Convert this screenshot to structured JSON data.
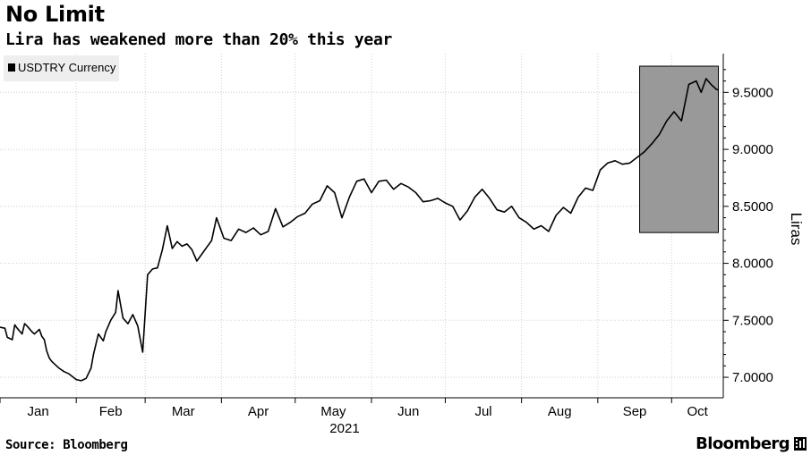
{
  "header": {
    "title": "No Limit",
    "subtitle": "Lira has weakened more than 20% this year"
  },
  "footer": {
    "source": "Source: Bloomberg",
    "brand": "Bloomberg"
  },
  "chart_data": {
    "type": "line",
    "legend": {
      "label": "USDTRY Currency",
      "placement": "top-left"
    },
    "ylabel": "Liras",
    "ylim": [
      6.82,
      9.84
    ],
    "yticks": [
      7.0,
      7.5,
      8.0,
      8.5,
      9.0,
      9.5
    ],
    "ytick_labels": [
      "7.0000",
      "7.5000",
      "8.0000",
      "8.5000",
      "9.0000",
      "9.5000"
    ],
    "y_axis_side": "right",
    "grid": true,
    "x_year_label": "2021",
    "x_months": [
      "Jan",
      "Feb",
      "Mar",
      "Apr",
      "May",
      "Jun",
      "Jul",
      "Aug",
      "Sep",
      "Oct"
    ],
    "xlim": [
      "2021-01-01",
      "2021-10-22"
    ],
    "highlight_range": {
      "x_start": "2021-09-18",
      "x_end": "2021-10-20",
      "y_low": 8.27,
      "y_high": 9.73
    },
    "colors": {
      "line": "#000000",
      "highlight": "#999999",
      "legend_bg": "#eeeeee"
    },
    "series": [
      {
        "name": "USDTRY Currency",
        "x": [
          "2021-01-01",
          "2021-01-03",
          "2021-01-04",
          "2021-01-06",
          "2021-01-07",
          "2021-01-08",
          "2021-01-10",
          "2021-01-11",
          "2021-01-12",
          "2021-01-14",
          "2021-01-15",
          "2021-01-17",
          "2021-01-18",
          "2021-01-19",
          "2021-01-20",
          "2021-01-21",
          "2021-01-22",
          "2021-01-25",
          "2021-01-27",
          "2021-01-29",
          "2021-02-01",
          "2021-02-03",
          "2021-02-05",
          "2021-02-07",
          "2021-02-08",
          "2021-02-10",
          "2021-02-12",
          "2021-02-13",
          "2021-02-15",
          "2021-02-17",
          "2021-02-18",
          "2021-02-20",
          "2021-02-22",
          "2021-02-24",
          "2021-02-26",
          "2021-02-28",
          "2021-03-02",
          "2021-03-04",
          "2021-03-06",
          "2021-03-08",
          "2021-03-10",
          "2021-03-12",
          "2021-03-14",
          "2021-03-16",
          "2021-03-18",
          "2021-03-20",
          "2021-03-22",
          "2021-03-24",
          "2021-03-26",
          "2021-03-28",
          "2021-03-30",
          "2021-04-02",
          "2021-04-05",
          "2021-04-08",
          "2021-04-11",
          "2021-04-14",
          "2021-04-17",
          "2021-04-20",
          "2021-04-23",
          "2021-04-26",
          "2021-04-29",
          "2021-05-02",
          "2021-05-05",
          "2021-05-08",
          "2021-05-11",
          "2021-05-14",
          "2021-05-17",
          "2021-05-20",
          "2021-05-23",
          "2021-05-26",
          "2021-05-29",
          "2021-06-01",
          "2021-06-04",
          "2021-06-07",
          "2021-06-10",
          "2021-06-13",
          "2021-06-16",
          "2021-06-19",
          "2021-06-22",
          "2021-06-25",
          "2021-06-28",
          "2021-07-01",
          "2021-07-04",
          "2021-07-07",
          "2021-07-10",
          "2021-07-13",
          "2021-07-16",
          "2021-07-19",
          "2021-07-22",
          "2021-07-25",
          "2021-07-28",
          "2021-07-31",
          "2021-08-03",
          "2021-08-06",
          "2021-08-09",
          "2021-08-12",
          "2021-08-15",
          "2021-08-18",
          "2021-08-21",
          "2021-08-24",
          "2021-08-27",
          "2021-08-30",
          "2021-09-02",
          "2021-09-05",
          "2021-09-08",
          "2021-09-11",
          "2021-09-14",
          "2021-09-17",
          "2021-09-20",
          "2021-09-23",
          "2021-09-26",
          "2021-09-29",
          "2021-10-02",
          "2021-10-05",
          "2021-10-08",
          "2021-10-11",
          "2021-10-13",
          "2021-10-15",
          "2021-10-17",
          "2021-10-19",
          "2021-10-20"
        ],
        "values": [
          7.44,
          7.43,
          7.35,
          7.33,
          7.46,
          7.43,
          7.38,
          7.47,
          7.45,
          7.4,
          7.38,
          7.42,
          7.36,
          7.33,
          7.23,
          7.17,
          7.14,
          7.08,
          7.05,
          7.03,
          6.98,
          6.97,
          6.99,
          7.08,
          7.2,
          7.38,
          7.32,
          7.4,
          7.5,
          7.57,
          7.76,
          7.52,
          7.47,
          7.55,
          7.45,
          7.22,
          7.9,
          7.95,
          7.96,
          8.12,
          8.33,
          8.13,
          8.19,
          8.15,
          8.17,
          8.12,
          8.02,
          8.08,
          8.14,
          8.2,
          8.4,
          8.22,
          8.2,
          8.3,
          8.27,
          8.31,
          8.25,
          8.28,
          8.48,
          8.32,
          8.36,
          8.41,
          8.44,
          8.52,
          8.55,
          8.68,
          8.62,
          8.4,
          8.58,
          8.72,
          8.74,
          8.62,
          8.72,
          8.73,
          8.65,
          8.7,
          8.67,
          8.62,
          8.54,
          8.55,
          8.57,
          8.53,
          8.5,
          8.38,
          8.46,
          8.58,
          8.65,
          8.57,
          8.47,
          8.45,
          8.5,
          8.4,
          8.36,
          8.3,
          8.33,
          8.28,
          8.42,
          8.49,
          8.44,
          8.58,
          8.66,
          8.64,
          8.82,
          8.88,
          8.9,
          8.87,
          8.88,
          8.93,
          8.98,
          9.05,
          9.13,
          9.25,
          9.33,
          9.25,
          9.57,
          9.6,
          9.5,
          9.62,
          9.57,
          9.53,
          9.52
        ]
      }
    ]
  }
}
